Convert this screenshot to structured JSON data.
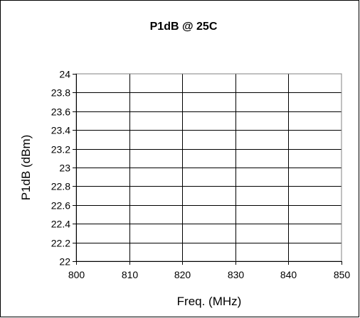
{
  "chart_data": {
    "type": "line",
    "title": "P1dB @ 25C",
    "xlabel": "Freq. (MHz)",
    "ylabel": "P1dB (dBm)",
    "x_ticks": [
      800,
      810,
      820,
      830,
      840,
      850
    ],
    "y_ticks": [
      22,
      22.2,
      22.4,
      22.6,
      22.8,
      23,
      23.2,
      23.4,
      23.6,
      23.8,
      24
    ],
    "x_tick_labels": [
      "800",
      "810",
      "820",
      "830",
      "840",
      "850"
    ],
    "y_tick_labels": [
      "22",
      "22.2",
      "22.4",
      "22.6",
      "22.8",
      "23",
      "23.2",
      "23.4",
      "23.6",
      "23.8",
      "24"
    ],
    "xlim": [
      800,
      850
    ],
    "ylim": [
      22,
      24
    ],
    "grid": true,
    "legend": "none",
    "series": []
  }
}
